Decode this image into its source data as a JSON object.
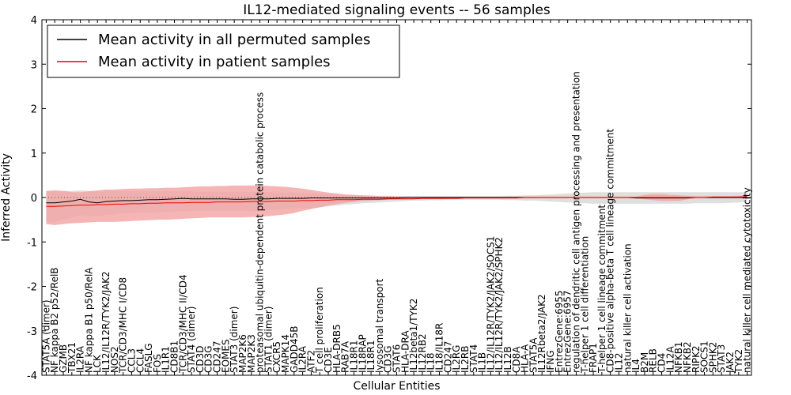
{
  "chart_data": {
    "type": "line",
    "title": "IL12-mediated signaling events -- 56 samples",
    "xlabel": "Cellular Entities",
    "ylabel": "Inferred Activity",
    "ylim": [
      -4,
      4
    ],
    "yticks": [
      -4,
      -3,
      -2,
      -1,
      0,
      1,
      2,
      3,
      4
    ],
    "grid": false,
    "legend_position": "top-left",
    "colors": {
      "permuted_line": "#000000",
      "permuted_band": "#d9d9d9",
      "patient_line": "#ee0000",
      "patient_band": "#f4a3a3",
      "baseline": "#555555"
    },
    "entities": [
      "STAT5A (dimer)",
      "NF kappa B2 p52/RelB",
      "GZMB",
      "TBX21",
      "IL2RA",
      "NF kappa B1 p50/RelA",
      "LCK",
      "IL12/IL12R/TYK2/JAK2",
      "NOS2",
      "TCR/CD3/MHC I/CD8",
      "CCL3",
      "CCL4",
      "FASLG",
      "FOS",
      "IL1R1",
      "CD8B1",
      "TCR/CD3/MHC II/CD4",
      "STAT4 (dimer)",
      "CD3D",
      "CD3G",
      "CD247",
      "EOMES",
      "STAT3 (dimer)",
      "MAP2K6",
      "MAP2K3",
      "proteasomal ubiquitin-dependent protein catabolic process",
      "STAT1 (dimer)",
      "CXCR5",
      "MAPK14",
      "GADD45B",
      "IL2RA",
      "ATF2",
      "T cell proliferation",
      "CD3E",
      "HLA-DRB5",
      "RAB7A",
      "IL18R1",
      "IL18RAP",
      "IL18R1",
      "lysosomal transport",
      "CD3G",
      "STAT6",
      "HLA-DRA",
      "IL12beta1/TYK2",
      "IL12RB2",
      "IL18",
      "IL18/IL18R",
      "CD247",
      "IL2RG",
      "IL2RB",
      "STAT4",
      "IL1B",
      "IL12/IL12R/TYK2/JAK2/SOCS1",
      "IL12/IL12R/TYK2/JAK2/SPHK2",
      "IL12B",
      "CD8A",
      "HLA-A",
      "STAT5A",
      "IL12Rbeta2/JAK2",
      "IFNG",
      "EntrezGene:6955",
      "EntrezGene:6957",
      "regulation of dendritic cell antigen processing and presentation",
      "T-helper 1 cell differentiation",
      "FRAP1",
      "T-helper 1 cell lineage commitment",
      "CD8-positive alpha-beta T cell lineage commitment",
      "IL12",
      "natural killer cell activation",
      "IL4",
      "B2M",
      "RELB",
      "CD4",
      "IL12A",
      "NFKB1",
      "NFKB2",
      "RIPK2",
      "SOCS1",
      "SPHK2",
      "STAT3",
      "JAK2",
      "TYK2",
      "natural killer cell mediated cytotoxicity"
    ],
    "series": [
      {
        "name": "Mean activity in all permuted samples",
        "mean": [
          -0.12,
          -0.12,
          -0.1,
          -0.08,
          -0.04,
          -0.1,
          -0.12,
          -0.09,
          -0.08,
          -0.07,
          -0.07,
          -0.06,
          -0.05,
          -0.05,
          -0.04,
          -0.03,
          -0.02,
          -0.03,
          -0.03,
          -0.03,
          -0.03,
          -0.03,
          -0.04,
          -0.04,
          -0.03,
          -0.03,
          -0.03,
          -0.02,
          -0.02,
          -0.02,
          -0.02,
          -0.01,
          -0.01,
          -0.01,
          -0.01,
          -0.01,
          -0.01,
          -0.01,
          -0.01,
          -0.01,
          -0.01,
          -0.01,
          0.0,
          0.0,
          0.0,
          0.0,
          0.0,
          0.0,
          0.0,
          0.0,
          0.0,
          0.0,
          0.0,
          0.0,
          0.0,
          0.0,
          0.0,
          0.0,
          0.0,
          0.0,
          0.0,
          0.0,
          0.0,
          0.0,
          0.0,
          0.0,
          0.0,
          0.0,
          0.0,
          -0.01,
          -0.01,
          -0.01,
          -0.01,
          -0.01,
          -0.01,
          -0.01,
          0.0,
          0.0,
          0.0,
          0.0,
          0.0,
          0.0,
          0.0
        ],
        "lower": [
          -0.55,
          -0.55,
          -0.5,
          -0.45,
          -0.4,
          -0.42,
          -0.42,
          -0.4,
          -0.38,
          -0.36,
          -0.35,
          -0.34,
          -0.34,
          -0.33,
          -0.32,
          -0.32,
          -0.31,
          -0.3,
          -0.3,
          -0.3,
          -0.3,
          -0.3,
          -0.3,
          -0.3,
          -0.3,
          -0.3,
          -0.29,
          -0.28,
          -0.27,
          -0.26,
          -0.25,
          -0.24,
          -0.22,
          -0.2,
          -0.18,
          -0.16,
          -0.15,
          -0.13,
          -0.12,
          -0.11,
          -0.1,
          -0.09,
          -0.08,
          -0.07,
          -0.07,
          -0.06,
          -0.06,
          -0.05,
          -0.05,
          -0.05,
          -0.05,
          -0.05,
          -0.05,
          -0.05,
          -0.06,
          -0.06,
          -0.07,
          -0.07,
          -0.08,
          -0.09,
          -0.1,
          -0.11,
          -0.12,
          -0.13,
          -0.14,
          -0.14,
          -0.14,
          -0.14,
          -0.14,
          -0.14,
          -0.14,
          -0.14,
          -0.14,
          -0.14,
          -0.14,
          -0.14,
          -0.13,
          -0.13,
          -0.13,
          -0.13,
          -0.12,
          -0.11,
          -0.1
        ],
        "upper": [
          0.15,
          0.15,
          0.15,
          0.15,
          0.16,
          0.15,
          0.14,
          0.14,
          0.14,
          0.14,
          0.14,
          0.14,
          0.14,
          0.14,
          0.14,
          0.14,
          0.14,
          0.14,
          0.13,
          0.13,
          0.13,
          0.13,
          0.13,
          0.13,
          0.13,
          0.13,
          0.12,
          0.12,
          0.11,
          0.11,
          0.1,
          0.1,
          0.09,
          0.08,
          0.07,
          0.06,
          0.05,
          0.05,
          0.05,
          0.04,
          0.04,
          0.04,
          0.03,
          0.03,
          0.03,
          0.03,
          0.03,
          0.03,
          0.03,
          0.03,
          0.03,
          0.03,
          0.03,
          0.03,
          0.04,
          0.04,
          0.05,
          0.05,
          0.06,
          0.07,
          0.08,
          0.09,
          0.1,
          0.11,
          0.12,
          0.12,
          0.12,
          0.12,
          0.12,
          0.12,
          0.12,
          0.12,
          0.12,
          0.12,
          0.12,
          0.12,
          0.12,
          0.12,
          0.12,
          0.12,
          0.12,
          0.12,
          0.12
        ]
      },
      {
        "name": "Mean activity in patient samples",
        "mean": [
          -0.2,
          -0.2,
          -0.19,
          -0.18,
          -0.17,
          -0.17,
          -0.16,
          -0.16,
          -0.15,
          -0.15,
          -0.14,
          -0.14,
          -0.13,
          -0.13,
          -0.12,
          -0.12,
          -0.12,
          -0.11,
          -0.11,
          -0.11,
          -0.1,
          -0.1,
          -0.1,
          -0.1,
          -0.09,
          -0.09,
          -0.09,
          -0.08,
          -0.08,
          -0.08,
          -0.07,
          -0.07,
          -0.06,
          -0.06,
          -0.05,
          -0.05,
          -0.05,
          -0.04,
          -0.04,
          -0.04,
          -0.03,
          -0.03,
          -0.03,
          -0.03,
          -0.02,
          -0.02,
          -0.02,
          -0.02,
          -0.02,
          -0.01,
          -0.01,
          -0.01,
          -0.01,
          -0.01,
          -0.01,
          -0.01,
          0.0,
          0.0,
          0.0,
          0.0,
          0.0,
          0.0,
          0.0,
          0.0,
          0.0,
          0.0,
          0.0,
          0.0,
          0.0,
          0.0,
          0.0,
          0.0,
          0.0,
          0.0,
          0.0,
          0.0,
          0.0,
          0.0,
          0.01,
          0.01,
          0.01,
          0.01,
          0.02
        ],
        "lower": [
          -0.6,
          -0.62,
          -0.6,
          -0.58,
          -0.57,
          -0.56,
          -0.55,
          -0.55,
          -0.55,
          -0.54,
          -0.53,
          -0.52,
          -0.51,
          -0.5,
          -0.5,
          -0.49,
          -0.48,
          -0.47,
          -0.46,
          -0.45,
          -0.45,
          -0.45,
          -0.45,
          -0.45,
          -0.44,
          -0.43,
          -0.42,
          -0.4,
          -0.38,
          -0.35,
          -0.3,
          -0.26,
          -0.22,
          -0.18,
          -0.15,
          -0.12,
          -0.1,
          -0.08,
          -0.07,
          -0.06,
          -0.05,
          -0.04,
          -0.04,
          -0.03,
          -0.03,
          -0.03,
          -0.03,
          -0.02,
          -0.02,
          -0.02,
          -0.02,
          -0.02,
          -0.02,
          -0.02,
          -0.02,
          -0.02,
          -0.02,
          -0.02,
          -0.02,
          -0.02,
          -0.02,
          -0.02,
          -0.02,
          -0.02,
          -0.02,
          -0.02,
          -0.02,
          -0.02,
          -0.02,
          -0.02,
          -0.04,
          -0.06,
          -0.08,
          -0.08,
          -0.08,
          -0.04,
          -0.02,
          -0.02,
          -0.02,
          -0.02,
          -0.02,
          -0.02,
          -0.02
        ],
        "upper": [
          0.15,
          0.16,
          0.15,
          0.12,
          0.12,
          0.14,
          0.16,
          0.18,
          0.18,
          0.19,
          0.2,
          0.2,
          0.21,
          0.21,
          0.22,
          0.22,
          0.23,
          0.24,
          0.25,
          0.25,
          0.26,
          0.26,
          0.27,
          0.27,
          0.27,
          0.27,
          0.26,
          0.25,
          0.24,
          0.22,
          0.2,
          0.17,
          0.14,
          0.11,
          0.09,
          0.07,
          0.06,
          0.05,
          0.04,
          0.03,
          0.03,
          0.02,
          0.02,
          0.02,
          0.02,
          0.02,
          0.02,
          0.02,
          0.02,
          0.02,
          0.02,
          0.02,
          0.02,
          0.02,
          0.02,
          0.02,
          0.02,
          0.02,
          0.02,
          0.02,
          0.02,
          0.02,
          0.02,
          0.02,
          0.02,
          0.02,
          0.02,
          0.02,
          0.02,
          0.02,
          0.06,
          0.08,
          0.08,
          0.06,
          0.05,
          0.04,
          0.03,
          0.03,
          0.03,
          0.03,
          0.03,
          0.04,
          0.05
        ]
      }
    ]
  }
}
